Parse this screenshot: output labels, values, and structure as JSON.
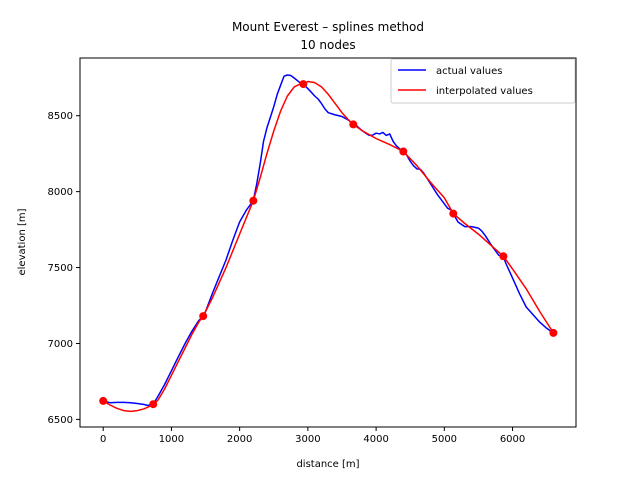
{
  "chart_data": {
    "type": "line",
    "title": "Mount Everest – splines method",
    "subtitle": "10 nodes",
    "xlabel": "distance [m]",
    "ylabel": "elevation [m]",
    "xlim": [
      -340,
      6930
    ],
    "ylim": [
      6450,
      8880
    ],
    "xticks": [
      0,
      1000,
      2000,
      3000,
      4000,
      5000,
      6000
    ],
    "yticks": [
      6500,
      7000,
      7500,
      8000,
      8500
    ],
    "grid": false,
    "legend_position": "top-right",
    "series": [
      {
        "name": "actual values",
        "color": "#0000ff",
        "x": [
          0,
          100,
          200,
          300,
          400,
          500,
          600,
          650,
          700,
          733,
          800,
          900,
          1000,
          1100,
          1200,
          1300,
          1400,
          1466,
          1500,
          1600,
          1700,
          1800,
          1900,
          2000,
          2100,
          2200,
          2250,
          2300,
          2350,
          2400,
          2500,
          2550,
          2600,
          2650,
          2700,
          2750,
          2800,
          2850,
          2900,
          2933,
          2950,
          3000,
          3050,
          3100,
          3150,
          3200,
          3250,
          3300,
          3400,
          3500,
          3600,
          3666,
          3700,
          3750,
          3800,
          3850,
          3900,
          3950,
          4000,
          4050,
          4100,
          4150,
          4200,
          4250,
          4300,
          4350,
          4400,
          4450,
          4500,
          4550,
          4600,
          4650,
          4700,
          4800,
          4900,
          5000,
          5050,
          5100,
          5132,
          5200,
          5300,
          5400,
          5500,
          5550,
          5600,
          5700,
          5800,
          5866,
          5900,
          6000,
          6100,
          6200,
          6300,
          6400,
          6500,
          6599
        ],
        "y": [
          6622,
          6610,
          6612,
          6612,
          6610,
          6605,
          6598,
          6592,
          6595,
          6600,
          6650,
          6730,
          6820,
          6910,
          7000,
          7080,
          7150,
          7180,
          7210,
          7330,
          7440,
          7550,
          7680,
          7800,
          7880,
          7940,
          8050,
          8180,
          8330,
          8420,
          8560,
          8640,
          8700,
          8760,
          8768,
          8765,
          8748,
          8730,
          8712,
          8708,
          8700,
          8678,
          8655,
          8630,
          8610,
          8580,
          8545,
          8520,
          8505,
          8495,
          8470,
          8443,
          8440,
          8420,
          8400,
          8385,
          8370,
          8372,
          8385,
          8380,
          8390,
          8370,
          8380,
          8330,
          8300,
          8280,
          8265,
          8240,
          8200,
          8170,
          8150,
          8148,
          8120,
          8050,
          7980,
          7920,
          7890,
          7880,
          7855,
          7800,
          7770,
          7770,
          7760,
          7740,
          7710,
          7640,
          7580,
          7574,
          7530,
          7430,
          7330,
          7240,
          7190,
          7140,
          7100,
          7070
        ]
      },
      {
        "name": "interpolated values",
        "color": "#ff0000",
        "x": [
          0,
          100,
          200,
          300,
          400,
          500,
          600,
          700,
          733,
          800,
          900,
          1000,
          1100,
          1200,
          1300,
          1400,
          1466,
          1600,
          1800,
          2000,
          2200,
          2300,
          2400,
          2500,
          2600,
          2700,
          2800,
          2900,
          2933,
          3000,
          3100,
          3200,
          3300,
          3400,
          3500,
          3600,
          3666,
          3800,
          4000,
          4200,
          4400,
          4600,
          4800,
          5000,
          5132,
          5300,
          5500,
          5700,
          5866,
          6000,
          6200,
          6400,
          6599
        ],
        "y": [
          6622,
          6595,
          6573,
          6558,
          6553,
          6558,
          6570,
          6590,
          6600,
          6625,
          6700,
          6790,
          6880,
          6970,
          7060,
          7140,
          7180,
          7300,
          7500,
          7720,
          7940,
          8090,
          8250,
          8400,
          8530,
          8630,
          8690,
          8712,
          8708,
          8725,
          8718,
          8690,
          8640,
          8580,
          8520,
          8470,
          8443,
          8400,
          8350,
          8310,
          8264,
          8170,
          8060,
          7960,
          7855,
          7790,
          7720,
          7640,
          7574,
          7490,
          7360,
          7210,
          7070
        ]
      },
      {
        "name": "nodes",
        "color": "#ff0000",
        "x": [
          0,
          733,
          1466,
          2200,
          2933,
          3666,
          4399,
          5132,
          5866,
          6599
        ],
        "y": [
          6622,
          6600,
          7180,
          7940,
          8708,
          8443,
          8264,
          7855,
          7574,
          7070
        ]
      }
    ]
  }
}
